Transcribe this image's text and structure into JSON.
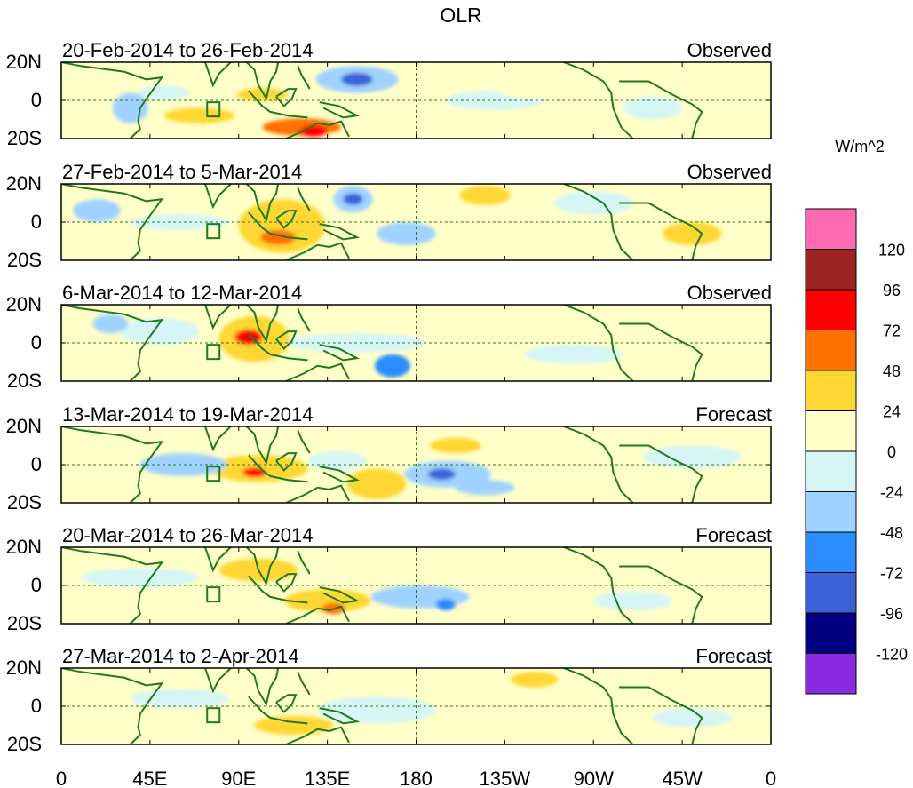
{
  "chart_data": {
    "type": "heatmap",
    "title": "OLR",
    "units": "W/m^2",
    "x_ticks": [
      "0",
      "45E",
      "90E",
      "135E",
      "180",
      "135W",
      "90W",
      "45W",
      "0"
    ],
    "y_ticks": [
      "20N",
      "0",
      "20S"
    ],
    "xlim": [
      0,
      360
    ],
    "ylim": [
      -20,
      20
    ],
    "colorbar": {
      "levels": [
        "120",
        "96",
        "72",
        "48",
        "24",
        "0",
        "-24",
        "-48",
        "-72",
        "-96",
        "-120"
      ],
      "colors": [
        "#ff69b4",
        "#9b2423",
        "#ff0000",
        "#ff7100",
        "#ffd732",
        "#ffffc8",
        "#d6f5f5",
        "#a0d2ff",
        "#2a8cff",
        "#3c62d8",
        "#000080",
        "#8a2be2"
      ]
    },
    "panels": [
      {
        "period": "20-Feb-2014 to 26-Feb-2014",
        "kind": "Observed",
        "anomalies": [
          {
            "lon": 150,
            "lat": 11,
            "w": 42,
            "h": 14,
            "v": -48
          },
          {
            "lon": 150,
            "lat": 11,
            "w": 16,
            "h": 7,
            "v": -96
          },
          {
            "lon": 122,
            "lat": -14,
            "w": 40,
            "h": 9,
            "v": 48
          },
          {
            "lon": 128,
            "lat": -16,
            "w": 14,
            "h": 6,
            "v": 72
          },
          {
            "lon": 70,
            "lat": -8,
            "w": 36,
            "h": 8,
            "v": 24
          },
          {
            "lon": 102,
            "lat": 3,
            "w": 26,
            "h": 7,
            "v": 24
          },
          {
            "lon": 52,
            "lat": 4,
            "w": 26,
            "h": 8,
            "v": -24
          },
          {
            "lon": 35,
            "lat": -4,
            "w": 18,
            "h": 16,
            "v": -48
          },
          {
            "lon": 220,
            "lat": 0,
            "w": 50,
            "h": 10,
            "v": -24
          },
          {
            "lon": 300,
            "lat": -4,
            "w": 30,
            "h": 12,
            "v": -24
          },
          {
            "lon": 250,
            "lat": 6,
            "w": 60,
            "h": 12,
            "v": 0
          }
        ]
      },
      {
        "period": "27-Feb-2014 to 5-Mar-2014",
        "kind": "Observed",
        "anomalies": [
          {
            "lon": 148,
            "lat": 12,
            "w": 20,
            "h": 14,
            "v": -48
          },
          {
            "lon": 148,
            "lat": 12,
            "w": 10,
            "h": 6,
            "v": -96
          },
          {
            "lon": 112,
            "lat": -2,
            "w": 44,
            "h": 28,
            "v": 24
          },
          {
            "lon": 110,
            "lat": -8,
            "w": 18,
            "h": 8,
            "v": 48
          },
          {
            "lon": 215,
            "lat": 14,
            "w": 26,
            "h": 10,
            "v": 24
          },
          {
            "lon": 175,
            "lat": -6,
            "w": 30,
            "h": 12,
            "v": -48
          },
          {
            "lon": 60,
            "lat": 0,
            "w": 50,
            "h": 8,
            "v": -24
          },
          {
            "lon": 18,
            "lat": 6,
            "w": 24,
            "h": 12,
            "v": -48
          },
          {
            "lon": 270,
            "lat": 10,
            "w": 40,
            "h": 12,
            "v": -24
          },
          {
            "lon": 320,
            "lat": -6,
            "w": 30,
            "h": 12,
            "v": 24
          },
          {
            "lon": 230,
            "lat": -4,
            "w": 40,
            "h": 10,
            "v": 0
          }
        ]
      },
      {
        "period": "6-Mar-2014 to 12-Mar-2014",
        "kind": "Observed",
        "anomalies": [
          {
            "lon": 98,
            "lat": 2,
            "w": 36,
            "h": 24,
            "v": 24
          },
          {
            "lon": 95,
            "lat": 3,
            "w": 14,
            "h": 8,
            "v": 72
          },
          {
            "lon": 168,
            "lat": -12,
            "w": 18,
            "h": 12,
            "v": -72
          },
          {
            "lon": 150,
            "lat": 0,
            "w": 70,
            "h": 10,
            "v": -24
          },
          {
            "lon": 50,
            "lat": 6,
            "w": 40,
            "h": 14,
            "v": -24
          },
          {
            "lon": 25,
            "lat": 10,
            "w": 18,
            "h": 10,
            "v": -48
          },
          {
            "lon": 210,
            "lat": 12,
            "w": 70,
            "h": 12,
            "v": 0
          },
          {
            "lon": 260,
            "lat": -6,
            "w": 50,
            "h": 10,
            "v": -24
          },
          {
            "lon": 315,
            "lat": 10,
            "w": 40,
            "h": 14,
            "v": 0
          }
        ]
      },
      {
        "period": "13-Mar-2014 to 19-Mar-2014",
        "kind": "Forecast",
        "anomalies": [
          {
            "lon": 196,
            "lat": -5,
            "w": 44,
            "h": 14,
            "v": -48
          },
          {
            "lon": 193,
            "lat": -5,
            "w": 14,
            "h": 6,
            "v": -96
          },
          {
            "lon": 215,
            "lat": -12,
            "w": 30,
            "h": 8,
            "v": -48
          },
          {
            "lon": 160,
            "lat": -10,
            "w": 30,
            "h": 16,
            "v": 24
          },
          {
            "lon": 100,
            "lat": -2,
            "w": 50,
            "h": 14,
            "v": 24
          },
          {
            "lon": 98,
            "lat": -4,
            "w": 12,
            "h": 5,
            "v": 72
          },
          {
            "lon": 62,
            "lat": 0,
            "w": 44,
            "h": 12,
            "v": -48
          },
          {
            "lon": 200,
            "lat": 10,
            "w": 26,
            "h": 8,
            "v": 24
          },
          {
            "lon": 140,
            "lat": 2,
            "w": 30,
            "h": 10,
            "v": -24
          },
          {
            "lon": 270,
            "lat": 0,
            "w": 60,
            "h": 12,
            "v": 0
          },
          {
            "lon": 320,
            "lat": 4,
            "w": 50,
            "h": 12,
            "v": -24
          }
        ]
      },
      {
        "period": "20-Mar-2014 to 26-Mar-2014",
        "kind": "Forecast",
        "anomalies": [
          {
            "lon": 182,
            "lat": -6,
            "w": 50,
            "h": 12,
            "v": -48
          },
          {
            "lon": 195,
            "lat": -10,
            "w": 10,
            "h": 6,
            "v": -72
          },
          {
            "lon": 135,
            "lat": -8,
            "w": 44,
            "h": 12,
            "v": 24
          },
          {
            "lon": 138,
            "lat": -12,
            "w": 12,
            "h": 6,
            "v": 48
          },
          {
            "lon": 100,
            "lat": 8,
            "w": 40,
            "h": 12,
            "v": 24
          },
          {
            "lon": 40,
            "lat": 4,
            "w": 60,
            "h": 10,
            "v": -24
          },
          {
            "lon": 250,
            "lat": 8,
            "w": 70,
            "h": 12,
            "v": 0
          },
          {
            "lon": 290,
            "lat": -8,
            "w": 40,
            "h": 10,
            "v": -24
          },
          {
            "lon": 320,
            "lat": 10,
            "w": 40,
            "h": 14,
            "v": 0
          }
        ]
      },
      {
        "period": "27-Mar-2014 to 2-Apr-2014",
        "kind": "Forecast",
        "anomalies": [
          {
            "lon": 160,
            "lat": -2,
            "w": 60,
            "h": 14,
            "v": -24
          },
          {
            "lon": 118,
            "lat": -10,
            "w": 40,
            "h": 10,
            "v": 24
          },
          {
            "lon": 108,
            "lat": 8,
            "w": 40,
            "h": 12,
            "v": 0
          },
          {
            "lon": 240,
            "lat": 14,
            "w": 24,
            "h": 8,
            "v": 24
          },
          {
            "lon": 60,
            "lat": 4,
            "w": 50,
            "h": 10,
            "v": -24
          },
          {
            "lon": 260,
            "lat": 0,
            "w": 70,
            "h": 12,
            "v": 0
          },
          {
            "lon": 320,
            "lat": -6,
            "w": 40,
            "h": 10,
            "v": -24
          }
        ]
      }
    ]
  }
}
